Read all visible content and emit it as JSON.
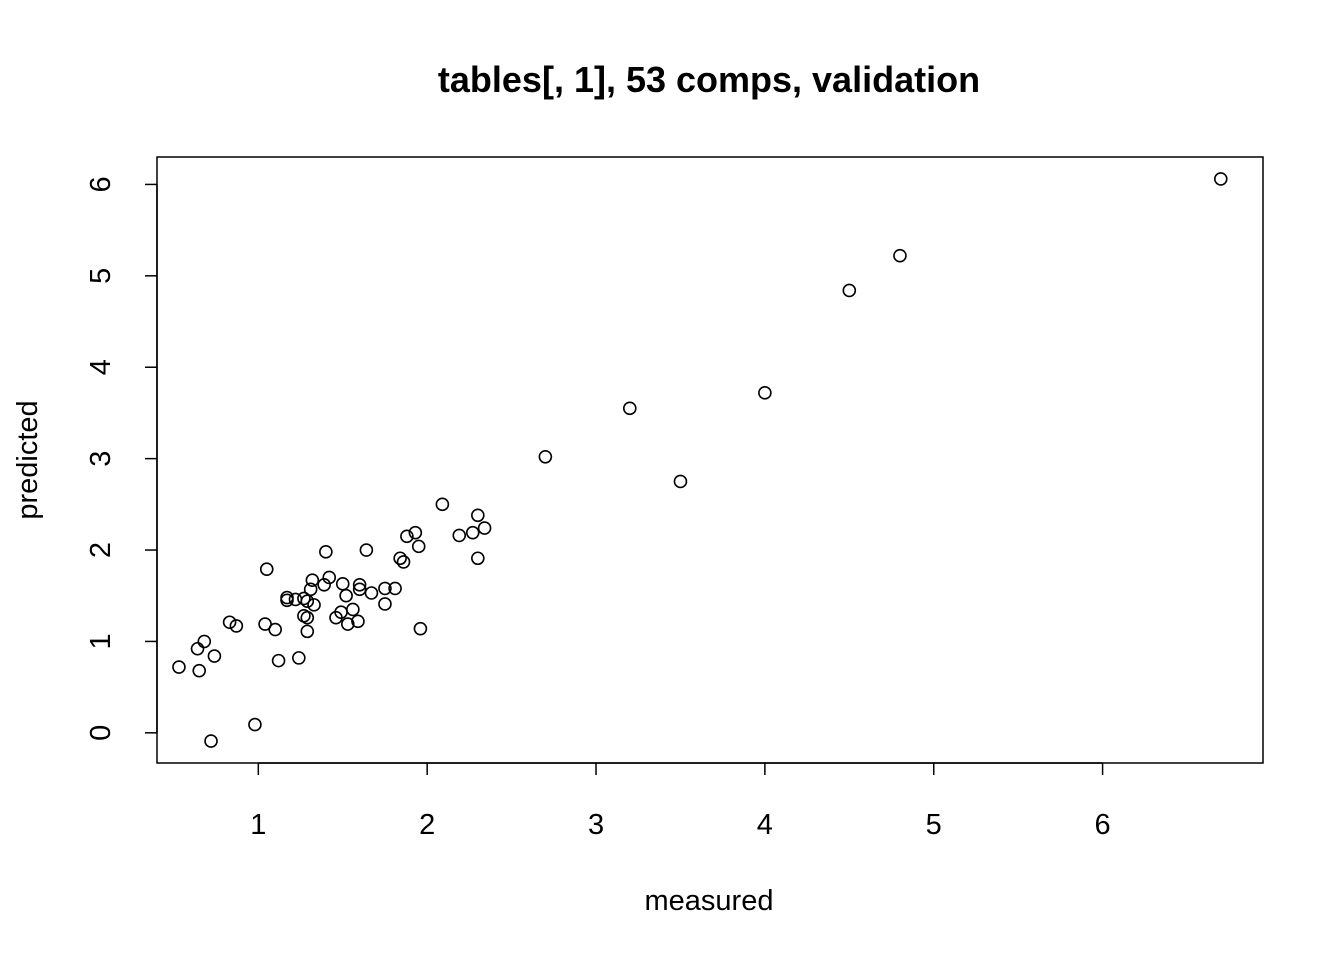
{
  "chart_data": {
    "type": "scatter",
    "title": "tables[, 1], 53 comps, validation",
    "xlabel": "measured",
    "ylabel": "predicted",
    "xlim": [
      0.4,
      6.95
    ],
    "ylim": [
      -0.33,
      6.3
    ],
    "xticks": [
      "1",
      "2",
      "3",
      "4",
      "5",
      "6"
    ],
    "yticks": [
      "0",
      "1",
      "2",
      "3",
      "4",
      "5",
      "6"
    ],
    "grid": false,
    "legend": "none",
    "point_color": "#000000",
    "series": [
      {
        "points": [
          [
            0.53,
            0.72
          ],
          [
            0.64,
            0.92
          ],
          [
            0.65,
            0.68
          ],
          [
            0.68,
            1.0
          ],
          [
            0.72,
            -0.09
          ],
          [
            0.74,
            0.84
          ],
          [
            0.83,
            1.21
          ],
          [
            0.87,
            1.17
          ],
          [
            0.98,
            0.09
          ],
          [
            1.04,
            1.19
          ],
          [
            1.05,
            1.79
          ],
          [
            1.1,
            1.13
          ],
          [
            1.12,
            0.79
          ],
          [
            1.17,
            1.48
          ],
          [
            1.17,
            1.45
          ],
          [
            1.22,
            1.46
          ],
          [
            1.24,
            0.82
          ],
          [
            1.27,
            1.47
          ],
          [
            1.27,
            1.28
          ],
          [
            1.29,
            1.44
          ],
          [
            1.29,
            1.11
          ],
          [
            1.29,
            1.26
          ],
          [
            1.31,
            1.57
          ],
          [
            1.32,
            1.67
          ],
          [
            1.33,
            1.4
          ],
          [
            1.39,
            1.62
          ],
          [
            1.4,
            1.98
          ],
          [
            1.42,
            1.7
          ],
          [
            1.46,
            1.26
          ],
          [
            1.49,
            1.32
          ],
          [
            1.5,
            1.63
          ],
          [
            1.52,
            1.5
          ],
          [
            1.53,
            1.19
          ],
          [
            1.56,
            1.35
          ],
          [
            1.59,
            1.22
          ],
          [
            1.6,
            1.62
          ],
          [
            1.6,
            1.57
          ],
          [
            1.64,
            2.0
          ],
          [
            1.67,
            1.53
          ],
          [
            1.75,
            1.58
          ],
          [
            1.75,
            1.41
          ],
          [
            1.81,
            1.58
          ],
          [
            1.84,
            1.91
          ],
          [
            1.86,
            1.87
          ],
          [
            1.88,
            2.15
          ],
          [
            1.93,
            2.19
          ],
          [
            1.95,
            2.04
          ],
          [
            1.96,
            1.14
          ],
          [
            2.09,
            2.5
          ],
          [
            2.19,
            2.16
          ],
          [
            2.27,
            2.19
          ],
          [
            2.3,
            2.38
          ],
          [
            2.3,
            1.91
          ],
          [
            2.34,
            2.24
          ],
          [
            2.7,
            3.02
          ],
          [
            3.2,
            3.55
          ],
          [
            3.5,
            2.75
          ],
          [
            4.0,
            3.72
          ],
          [
            4.5,
            4.84
          ],
          [
            4.8,
            5.22
          ],
          [
            6.7,
            6.06
          ]
        ]
      }
    ]
  }
}
